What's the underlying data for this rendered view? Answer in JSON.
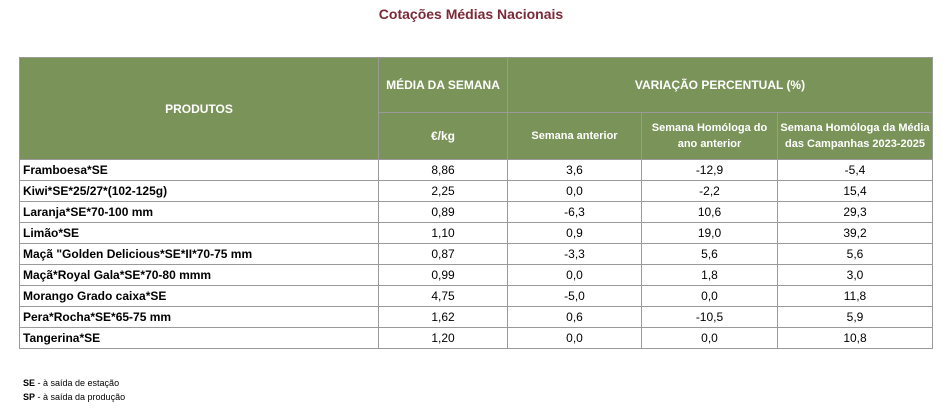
{
  "title": "Cotações Médias Nacionais",
  "headers": {
    "products": "PRODUTOS",
    "week_avg": "MÉDIA DA SEMANA",
    "unit": "€/kg",
    "variation": "VARIAÇÃO PERCENTUAL (%)",
    "prev_week": "Semana anterior",
    "same_week_last_year": "Semana Homóloga do ano anterior",
    "same_week_campaigns": "Semana Homóloga da Média das Campanhas 2023-2025"
  },
  "rows": [
    {
      "product": "Framboesa*SE",
      "avg": "8,86",
      "prev": "3,6",
      "yoy": "-12,9",
      "camp": "-5,4"
    },
    {
      "product": "Kiwi*SE*25/27*(102-125g)",
      "avg": "2,25",
      "prev": "0,0",
      "yoy": "-2,2",
      "camp": "15,4"
    },
    {
      "product": "Laranja*SE*70-100 mm",
      "avg": "0,89",
      "prev": "-6,3",
      "yoy": "10,6",
      "camp": "29,3"
    },
    {
      "product": "Limão*SE",
      "avg": "1,10",
      "prev": "0,9",
      "yoy": "19,0",
      "camp": "39,2"
    },
    {
      "product": "Maçã \"Golden Delicious*SE*II*70-75 mm",
      "avg": "0,87",
      "prev": "-3,3",
      "yoy": "5,6",
      "camp": "5,6"
    },
    {
      "product": "Maçã*Royal Gala*SE*70-80 mmm",
      "avg": "0,99",
      "prev": "0,0",
      "yoy": "1,8",
      "camp": "3,0"
    },
    {
      "product": "Morango Grado caixa*SE",
      "avg": "4,75",
      "prev": "-5,0",
      "yoy": "0,0",
      "camp": "11,8"
    },
    {
      "product": "Pera*Rocha*SE*65-75 mm",
      "avg": "1,62",
      "prev": "0,6",
      "yoy": "-10,5",
      "camp": "5,9"
    },
    {
      "product": "Tangerina*SE",
      "avg": "1,20",
      "prev": "0,0",
      "yoy": "0,0",
      "camp": "10,8"
    }
  ],
  "footnotes": [
    {
      "key": "SE",
      "text": " - à saída de estação"
    },
    {
      "key": "SP",
      "text": " - à saída da produção"
    }
  ],
  "colors": {
    "header_bg": "#7a9359",
    "title": "#7b2a37"
  }
}
